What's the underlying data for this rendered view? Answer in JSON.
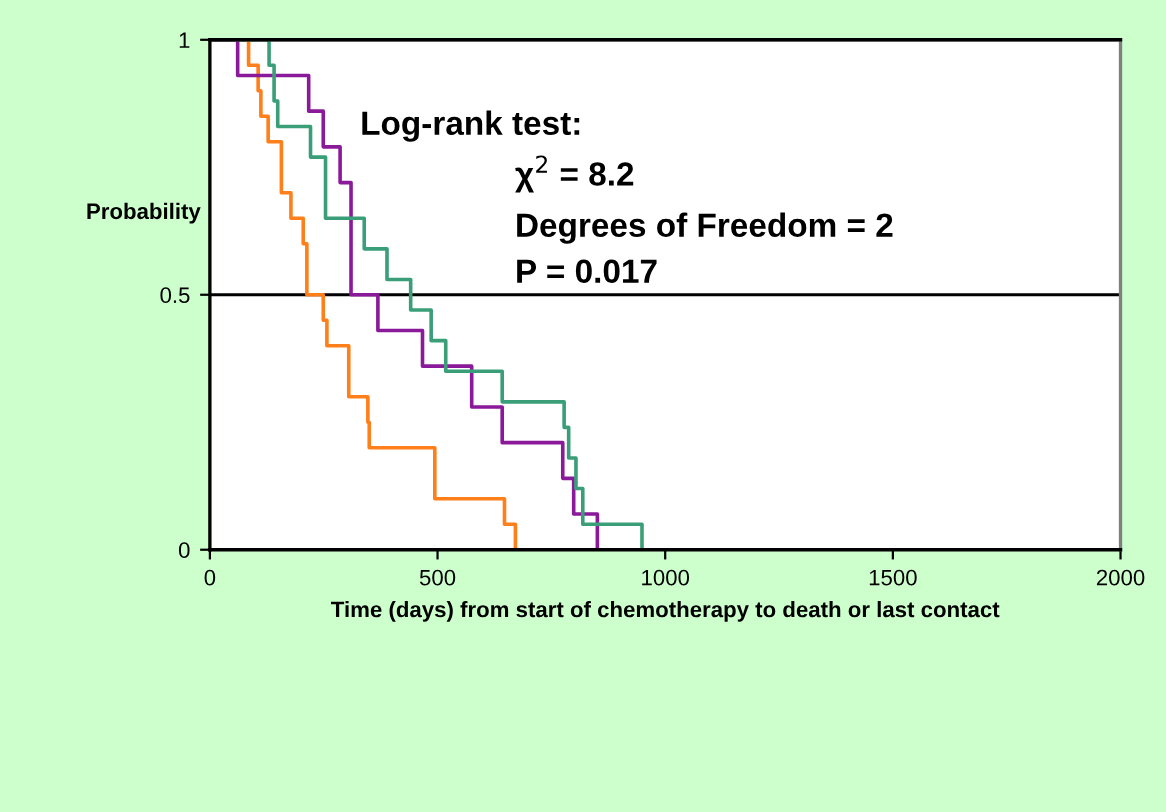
{
  "chart_data": {
    "type": "step",
    "xlabel": "Time (days) from start of chemotherapy to death or last contact",
    "ylabel": "Probability",
    "xlim": [
      0,
      2000
    ],
    "xticks": [
      0,
      500,
      1000,
      1500,
      2000
    ],
    "ylim": [
      0,
      1
    ],
    "yticks": [
      0,
      0.5,
      1
    ],
    "grid": "y",
    "legend": false,
    "annotations": [
      "Log-rank test:",
      "χ$^{2}$ = 8.2",
      "Degrees of Freedom = 2",
      "P = 0.017"
    ],
    "series": [
      {
        "color": "#ff7f1a",
        "x": [
          0,
          85,
          106,
          112,
          128,
          157,
          178,
          205,
          213,
          249,
          257,
          305,
          347,
          350,
          494,
          647,
          671
        ],
        "values": [
          1,
          0.95,
          0.9,
          0.85,
          0.8,
          0.7,
          0.65,
          0.6,
          0.5,
          0.45,
          0.4,
          0.3,
          0.25,
          0.2,
          0.1,
          0.05,
          0
        ]
      },
      {
        "color": "#8b1a9a",
        "x": [
          0,
          61,
          217,
          249,
          286,
          310,
          369,
          467,
          575,
          642,
          775,
          799,
          851
        ],
        "values": [
          1,
          0.93,
          0.86,
          0.79,
          0.72,
          0.5,
          0.43,
          0.36,
          0.28,
          0.21,
          0.14,
          0.07,
          0
        ]
      },
      {
        "color": "#3a9e78",
        "x": [
          0,
          130,
          141,
          149,
          221,
          254,
          339,
          389,
          441,
          486,
          518,
          642,
          778,
          788,
          804,
          819,
          949
        ],
        "values": [
          1,
          0.95,
          0.88,
          0.83,
          0.77,
          0.65,
          0.59,
          0.53,
          0.47,
          0.41,
          0.35,
          0.29,
          0.24,
          0.18,
          0.12,
          0.05,
          0
        ]
      }
    ]
  }
}
